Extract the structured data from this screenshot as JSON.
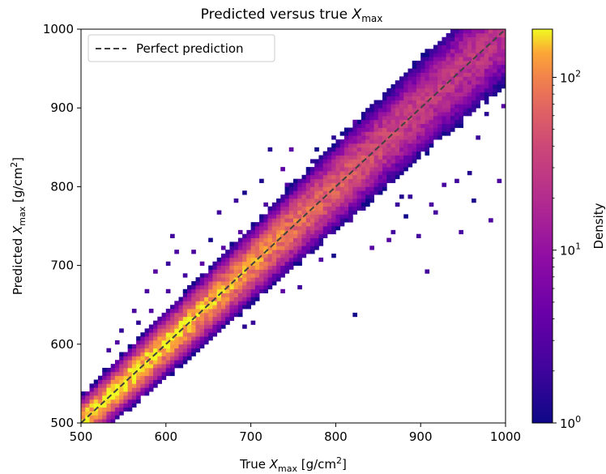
{
  "chart_data": {
    "type": "heatmap",
    "title_prefix": "Predicted versus true ",
    "title_var": "X",
    "title_sub": "max",
    "xlabel": {
      "prefix": "True ",
      "var": "X",
      "sub": "max",
      "unit_prefix": " [g/cm",
      "unit_sup": "2",
      "unit_suffix": "]"
    },
    "ylabel": {
      "prefix": "Predicted ",
      "var": "X",
      "sub": "max",
      "unit_prefix": " [g/cm",
      "unit_sup": "2",
      "unit_suffix": "]"
    },
    "xlim": [
      500,
      1000
    ],
    "ylim": [
      500,
      1000
    ],
    "xticks": [
      500,
      600,
      700,
      800,
      900,
      1000
    ],
    "yticks": [
      500,
      600,
      700,
      800,
      900,
      1000
    ],
    "bin_width": 5,
    "grid": false,
    "legend": {
      "placement": "upper-left",
      "entries": [
        {
          "label": "Perfect prediction",
          "style": "dashed",
          "color": "#404040"
        }
      ]
    },
    "reference_line": {
      "label": "Perfect prediction",
      "x": [
        500,
        1000
      ],
      "y": [
        500,
        1000
      ]
    },
    "colormap": "plasma",
    "colorbar": {
      "label": "Density",
      "scale": "log",
      "min": 1,
      "max": 190,
      "ticks": [
        {
          "value": 1,
          "base": "10",
          "exp": "0"
        },
        {
          "value": 10,
          "base": "10",
          "exp": "1"
        },
        {
          "value": 100,
          "base": "10",
          "exp": "2"
        }
      ]
    },
    "density_model": {
      "ridge": [
        [
          500,
          175
        ],
        [
          560,
          190
        ],
        [
          620,
          170
        ],
        [
          700,
          120
        ],
        [
          780,
          70
        ],
        [
          860,
          40
        ],
        [
          930,
          30
        ],
        [
          1000,
          25
        ]
      ],
      "spread_gcm2": [
        [
          500,
          11
        ],
        [
          700,
          16
        ],
        [
          850,
          22
        ],
        [
          1000,
          28
        ]
      ]
    },
    "outliers": [
      [
        610,
        715
      ],
      [
        628,
        640
      ],
      [
        662,
        768
      ],
      [
        690,
        790
      ],
      [
        720,
        847
      ],
      [
        735,
        820
      ],
      [
        745,
        845
      ],
      [
        760,
        780
      ],
      [
        778,
        733
      ],
      [
        790,
        755
      ],
      [
        803,
        745
      ],
      [
        824,
        638
      ],
      [
        840,
        720
      ],
      [
        862,
        730
      ],
      [
        868,
        740
      ],
      [
        872,
        775
      ],
      [
        875,
        785
      ],
      [
        880,
        760
      ],
      [
        888,
        785
      ],
      [
        898,
        735
      ],
      [
        905,
        693
      ],
      [
        910,
        775
      ],
      [
        918,
        768
      ],
      [
        928,
        800
      ],
      [
        940,
        805
      ],
      [
        945,
        740
      ],
      [
        955,
        815
      ],
      [
        960,
        783
      ],
      [
        980,
        757
      ],
      [
        992,
        805
      ],
      [
        995,
        900
      ],
      [
        990,
        920
      ],
      [
        968,
        860
      ],
      [
        975,
        893
      ],
      [
        950,
        890
      ],
      [
        885,
        940
      ],
      [
        878,
        905
      ],
      [
        903,
        955
      ],
      [
        918,
        975
      ],
      [
        928,
        948
      ],
      [
        900,
        922
      ],
      [
        855,
        850
      ],
      [
        865,
        880
      ],
      [
        845,
        865
      ],
      [
        830,
        880
      ],
      [
        812,
        860
      ],
      [
        800,
        825
      ],
      [
        775,
        845
      ],
      [
        710,
        805
      ],
      [
        682,
        780
      ],
      [
        652,
        730
      ],
      [
        632,
        715
      ],
      [
        605,
        735
      ],
      [
        600,
        700
      ],
      [
        588,
        690
      ],
      [
        578,
        668
      ],
      [
        560,
        640
      ],
      [
        548,
        618
      ],
      [
        540,
        600
      ],
      [
        532,
        590
      ],
      [
        555,
        575
      ],
      [
        545,
        560
      ],
      [
        535,
        550
      ],
      [
        515,
        545
      ],
      [
        528,
        568
      ],
      [
        522,
        532
      ],
      [
        508,
        527
      ],
      [
        505,
        532
      ],
      [
        520,
        510
      ],
      [
        510,
        500
      ],
      [
        700,
        625
      ],
      [
        690,
        622
      ],
      [
        735,
        665
      ],
      [
        758,
        673
      ],
      [
        780,
        705
      ],
      [
        795,
        712
      ],
      [
        818,
        755
      ],
      [
        833,
        770
      ],
      [
        850,
        790
      ],
      [
        870,
        820
      ],
      [
        895,
        840
      ],
      [
        915,
        862
      ],
      [
        930,
        880
      ],
      [
        950,
        910
      ],
      [
        970,
        930
      ],
      [
        985,
        945
      ],
      [
        998,
        962
      ],
      [
        845,
        903
      ],
      [
        820,
        880
      ],
      [
        795,
        860
      ],
      [
        770,
        830
      ],
      [
        740,
        800
      ],
      [
        715,
        775
      ],
      [
        688,
        740
      ],
      [
        665,
        722
      ],
      [
        640,
        700
      ],
      [
        622,
        685
      ],
      [
        600,
        668
      ],
      [
        582,
        640
      ],
      [
        566,
        628
      ],
      [
        560,
        540
      ],
      [
        585,
        570
      ],
      [
        612,
        595
      ],
      [
        640,
        620
      ],
      [
        668,
        648
      ],
      [
        700,
        680
      ],
      [
        730,
        700
      ],
      [
        760,
        730
      ],
      [
        790,
        760
      ],
      [
        820,
        790
      ],
      [
        850,
        818
      ],
      [
        880,
        850
      ],
      [
        910,
        878
      ],
      [
        940,
        905
      ],
      [
        970,
        935
      ],
      [
        990,
        960
      ]
    ]
  }
}
